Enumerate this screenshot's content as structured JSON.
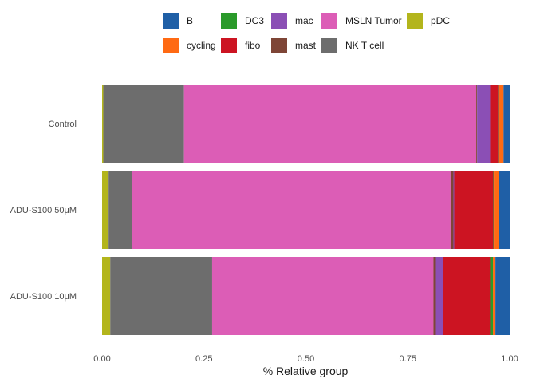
{
  "chart_data": {
    "type": "bar",
    "orientation": "horizontal",
    "stacked": true,
    "xlabel": "% Relative group",
    "ylabel": "",
    "xlim": [
      0,
      1
    ],
    "xticks": [
      "0.00",
      "0.25",
      "0.50",
      "0.75",
      "1.00"
    ],
    "grid": false,
    "legend_position": "top",
    "categories": [
      "Control",
      "ADU-S100 50μM",
      "ADU-S100 10μM"
    ],
    "stack_order": [
      "pDC",
      "NK T cell",
      "MSLN Tumor",
      "mast",
      "mac",
      "fibo",
      "DC3",
      "cycling",
      "B"
    ],
    "legend": [
      {
        "name": "B",
        "color": "#1f5fa6"
      },
      {
        "name": "DC3",
        "color": "#2a9a2a"
      },
      {
        "name": "mac",
        "color": "#8b4fb5"
      },
      {
        "name": "MSLN Tumor",
        "color": "#dc5db6"
      },
      {
        "name": "pDC",
        "color": "#b3b51c"
      },
      {
        "name": "cycling",
        "color": "#ff6a13"
      },
      {
        "name": "fibo",
        "color": "#cc1422"
      },
      {
        "name": "mast",
        "color": "#7e4536"
      },
      {
        "name": "NK T cell",
        "color": "#6d6d6d"
      }
    ],
    "series": [
      {
        "name": "pDC",
        "values": [
          0.003,
          0.016,
          0.02
        ]
      },
      {
        "name": "NK T cell",
        "values": [
          0.198,
          0.057,
          0.25
        ]
      },
      {
        "name": "MSLN Tumor",
        "values": [
          0.717,
          0.782,
          0.543
        ]
      },
      {
        "name": "mast",
        "values": [
          0.002,
          0.007,
          0.006
        ]
      },
      {
        "name": "mac",
        "values": [
          0.032,
          0.002,
          0.018
        ]
      },
      {
        "name": "fibo",
        "values": [
          0.02,
          0.096,
          0.115
        ]
      },
      {
        "name": "DC3",
        "values": [
          0.001,
          0.001,
          0.007
        ]
      },
      {
        "name": "cycling",
        "values": [
          0.012,
          0.013,
          0.006
        ]
      },
      {
        "name": "B",
        "values": [
          0.015,
          0.026,
          0.035
        ]
      }
    ]
  }
}
